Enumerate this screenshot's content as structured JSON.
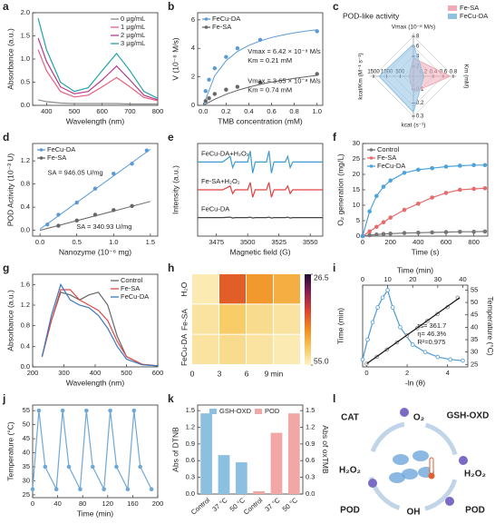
{
  "chart_data": [
    {
      "type": "line",
      "panel": "a",
      "xlabel": "Wavelength (nm)",
      "ylabel": "Absorbance (a.u.)",
      "xlim": [
        350,
        800
      ],
      "xticks": [
        400,
        500,
        600,
        700,
        800
      ],
      "ylim": [
        0,
        2.0
      ],
      "yticks": [
        {
          "value": 0,
          "label": "0.0"
        },
        0.5,
        {
          "value": 1,
          "label": "1.0"
        },
        1.5,
        {
          "value": 2,
          "label": "2.0"
        }
      ],
      "legend": "upper right",
      "x": [
        370,
        400,
        450,
        500,
        550,
        600,
        652,
        700,
        750,
        800
      ],
      "series": [
        {
          "name": "0 μg/mL",
          "color": "#8c8c8c",
          "values": [
            0.12,
            0.08,
            0.05,
            0.04,
            0.04,
            0.04,
            0.04,
            0.03,
            0.03,
            0.03
          ]
        },
        {
          "name": "1 μg/mL",
          "color": "#e8607e",
          "values": [
            1.2,
            0.75,
            0.3,
            0.18,
            0.22,
            0.4,
            0.6,
            0.4,
            0.17,
            0.1
          ]
        },
        {
          "name": "2 μg/mL",
          "color": "#b43a8c",
          "values": [
            1.45,
            0.95,
            0.4,
            0.25,
            0.3,
            0.55,
            0.85,
            0.55,
            0.22,
            0.12
          ]
        },
        {
          "name": "3 μg/mL",
          "color": "#22a3a8",
          "values": [
            1.88,
            1.2,
            0.5,
            0.3,
            0.38,
            0.75,
            1.12,
            0.75,
            0.3,
            0.15
          ]
        }
      ]
    },
    {
      "type": "scatter",
      "panel": "b",
      "xlabel": "TMB concentration (mM)",
      "ylabel": "V (10⁻⁸ M/s)",
      "xlim": [
        -0.05,
        1.05
      ],
      "xticks": [
        {
          "value": 0,
          "label": "0.0"
        },
        0.2,
        0.4,
        0.6,
        0.8,
        {
          "value": 1,
          "label": "1.0"
        }
      ],
      "ylim": [
        0,
        6.5
      ],
      "yticks": [
        0,
        2,
        4,
        6
      ],
      "legend": "upper left",
      "fit_x": [
        0,
        0.1,
        0.2,
        0.3,
        0.4,
        0.5,
        0.6,
        0.7,
        0.8,
        0.9,
        1.0
      ],
      "series": [
        {
          "name": "FeCu-DA",
          "color": "#5b9bd5",
          "x": [
            0.02,
            0.05,
            0.1,
            0.2,
            0.3,
            0.5,
            1.0
          ],
          "values": [
            1.0,
            1.8,
            2.6,
            3.4,
            4.0,
            4.6,
            5.2
          ],
          "fit_values": [
            0,
            2.07,
            3.13,
            3.78,
            4.21,
            4.52,
            4.76,
            4.94,
            5.09,
            5.21,
            5.31
          ]
        },
        {
          "name": "Fe-SA",
          "color": "#666666",
          "x": [
            0.02,
            0.05,
            0.1,
            0.2,
            0.3,
            0.5,
            1.0
          ],
          "values": [
            0.3,
            0.5,
            0.8,
            1.1,
            1.3,
            1.6,
            2.2
          ],
          "fit_values": [
            0,
            0.43,
            0.78,
            1.05,
            1.28,
            1.47,
            1.63,
            1.77,
            1.9,
            2.0,
            2.1
          ]
        }
      ],
      "annotations": [
        {
          "text": "Vmax = 6.42 × 10⁻⁸ M/s",
          "color": "#3a85c8"
        },
        {
          "text": "Km = 0.21 mM",
          "color": "#3a85c8"
        },
        {
          "text": "Vmax = 3.65 × 10⁻⁸ M/s",
          "color": "#444444"
        },
        {
          "text": "Km = 0.74 mM",
          "color": "#444444"
        }
      ]
    },
    {
      "type": "radar",
      "panel": "c",
      "title": "POD-like activity",
      "legend": "upper right",
      "axes": [
        {
          "name": "Vmax (10⁻⁸ M/s)",
          "lim": [
            0,
            8
          ],
          "ticks": [
            2,
            4,
            6,
            8
          ]
        },
        {
          "name": "Km (mM)",
          "lim": [
            0,
            0.8
          ],
          "ticks": [
            0.2,
            0.4,
            0.6,
            0.8
          ]
        },
        {
          "name": "kcat (s⁻¹)",
          "lim": [
            0,
            0.3
          ],
          "ticks": [
            0.1,
            0.2,
            0.3
          ]
        },
        {
          "name": "kcat/Km (M⁻¹ s⁻¹)",
          "lim": [
            0,
            1500
          ],
          "ticks": [
            500,
            1000,
            1500
          ]
        }
      ],
      "series": [
        {
          "name": "Fe-SA",
          "color": "#f2a9b8",
          "values": [
            3.65,
            0.74,
            0.12,
            160
          ]
        },
        {
          "name": "FeCu-DA",
          "color": "#8fc1e3",
          "values": [
            6.42,
            0.21,
            0.27,
            1290
          ]
        }
      ]
    },
    {
      "type": "scatter",
      "panel": "d",
      "xlabel": "Nanozyme (10⁻⁶ mg)",
      "ylabel": "POD Activity (10⁻³ U)",
      "xlim": [
        -0.1,
        1.6
      ],
      "xticks": [
        {
          "value": 0,
          "label": "0.0"
        },
        0.5,
        {
          "value": 1,
          "label": "1.0"
        },
        1.5
      ],
      "ylim": [
        -0.1,
        1.5
      ],
      "yticks": [
        {
          "value": 0,
          "label": "0.0"
        },
        0.4,
        0.8,
        1.2
      ],
      "legend": "upper left",
      "fit_x": [
        0,
        1.5
      ],
      "series": [
        {
          "name": "FeCu-DA",
          "color": "#5b9bd5",
          "x": [
            0.1,
            0.25,
            0.5,
            0.75,
            1.0,
            1.25,
            1.45
          ],
          "values": [
            0.1,
            0.27,
            0.48,
            0.72,
            0.98,
            1.15,
            1.38
          ],
          "fit_values": [
            0.02,
            1.4
          ]
        },
        {
          "name": "Fe-SA",
          "color": "#666666",
          "x": [
            0.25,
            0.5,
            0.75,
            1.0,
            1.25
          ],
          "values": [
            0.08,
            0.17,
            0.27,
            0.35,
            0.42
          ],
          "fit_values": [
            0,
            0.5
          ]
        }
      ],
      "annotations": [
        {
          "text": "SA = 946.05 U/mg",
          "color": "#3a85c8"
        },
        {
          "text": "SA = 340.93 U/mg",
          "color": "#444444"
        }
      ]
    },
    {
      "type": "line",
      "panel": "e",
      "xlabel": "Magnetic field (G)",
      "ylabel": "Intensity (a.u.)",
      "xlim": [
        3460,
        3560
      ],
      "xticks": [
        3475,
        3500,
        3525,
        3550
      ],
      "ylim": [
        0,
        10
      ],
      "legend": "inline",
      "x": [
        3460,
        3480,
        3486,
        3488,
        3490,
        3500,
        3502,
        3504,
        3506,
        3515,
        3517,
        3519,
        3521,
        3530,
        3532,
        3534,
        3536,
        3560
      ],
      "series": [
        {
          "name": "FeCu-DA+H₂O₂",
          "color": "#3d9bd0",
          "values": [
            8,
            8,
            8.6,
            7.4,
            8,
            8,
            9.2,
            6.8,
            8,
            8,
            9.2,
            6.8,
            8,
            8,
            8.6,
            7.4,
            8,
            8
          ]
        },
        {
          "name": "Fe-SA+H₂O₂",
          "color": "#e04040",
          "values": [
            5,
            5,
            5.4,
            4.6,
            5,
            5,
            5.8,
            4.2,
            5,
            5,
            5.8,
            4.2,
            5,
            5,
            5.4,
            4.6,
            5,
            5
          ]
        },
        {
          "name": "FeCu-DA",
          "color": "#444444",
          "values": [
            2,
            2,
            2.05,
            1.95,
            2,
            2,
            2.05,
            1.95,
            2,
            2,
            2.05,
            1.95,
            2,
            2,
            2.05,
            1.95,
            2,
            2
          ]
        }
      ]
    },
    {
      "type": "line",
      "panel": "f",
      "xlabel": "Time (s)",
      "ylabel": "O₂ generation (mg/L)",
      "xlim": [
        0,
        900
      ],
      "xticks": [
        0,
        200,
        400,
        600,
        800
      ],
      "ylim": [
        0,
        30
      ],
      "yticks": [
        0,
        5,
        10,
        15,
        20,
        25,
        30
      ],
      "legend": "upper left",
      "x": [
        0,
        50,
        100,
        150,
        200,
        300,
        400,
        500,
        600,
        700,
        800,
        880
      ],
      "series": [
        {
          "name": "Control",
          "color": "#777777",
          "style": "line+markers",
          "values": [
            0,
            0.3,
            0.5,
            0.7,
            0.8,
            1,
            1.1,
            1.2,
            1.3,
            1.4,
            1.4,
            1.5
          ]
        },
        {
          "name": "Fe-SA",
          "color": "#e86a6a",
          "style": "line+markers",
          "values": [
            0,
            1.5,
            3,
            4.5,
            6,
            8.5,
            10.5,
            12.5,
            14,
            15,
            15.3,
            15.5
          ]
        },
        {
          "name": "FeCu-DA",
          "color": "#4da3dc",
          "style": "line+markers",
          "values": [
            0,
            8,
            13,
            16,
            18,
            20.5,
            21.5,
            22,
            22.5,
            22.8,
            23,
            23
          ]
        }
      ]
    },
    {
      "type": "line",
      "panel": "g",
      "xlabel": "Wavelength (nm)",
      "ylabel": "Absorbance (a.u.)",
      "xlim": [
        200,
        600
      ],
      "xticks": [
        200,
        300,
        400,
        500,
        600
      ],
      "ylim": [
        0,
        1.8
      ],
      "yticks": [
        {
          "value": 0,
          "label": "0.0"
        },
        0.4,
        0.8,
        1.2,
        1.6
      ],
      "legend": "upper right",
      "x": [
        230,
        260,
        290,
        320,
        350,
        380,
        410,
        440,
        470,
        500,
        550,
        600
      ],
      "series": [
        {
          "name": "Control",
          "color": "#666666",
          "values": [
            0.2,
            0.9,
            1.45,
            1.4,
            1.3,
            1.4,
            1.45,
            1.2,
            0.6,
            0.2,
            0.05,
            0.02
          ]
        },
        {
          "name": "Fe-SA",
          "color": "#e04848",
          "values": [
            0.2,
            0.9,
            1.5,
            1.5,
            1.3,
            1.2,
            1.1,
            0.9,
            0.5,
            0.2,
            0.05,
            0.02
          ]
        },
        {
          "name": "FeCu-DA",
          "color": "#3a78c0",
          "values": [
            0.2,
            1.0,
            1.6,
            1.3,
            1.2,
            1.15,
            1.0,
            0.75,
            0.4,
            0.15,
            0.04,
            0.02
          ]
        }
      ]
    },
    {
      "type": "heatmap",
      "panel": "h",
      "rows": [
        "H₂O",
        "Fe-SA",
        "FeCu-DA"
      ],
      "columns": [
        "0",
        "3",
        "6",
        "9 min"
      ],
      "values": [
        [
          54,
          40,
          45,
          47
        ],
        [
          53,
          50,
          52,
          53
        ],
        [
          53,
          52,
          53,
          54
        ]
      ],
      "zlim": [
        26.5,
        55
      ],
      "zticks": [
        26.5,
        {
          "value": 55,
          "label": "55.0"
        }
      ],
      "colormap": [
        "#200c33",
        "#8a1e52",
        "#d8442f",
        "#f08a1e",
        "#f7c65a",
        "#fcf3c6"
      ]
    },
    {
      "type": "line",
      "panel": "i",
      "xlabel": "-ln (θ)",
      "ylabel": "Time (min)",
      "x2label": "Time (min)",
      "y2label": "Temperature (°C)",
      "xlim": [
        -0.2,
        5
      ],
      "xticks": [
        0,
        2,
        4
      ],
      "x2lim": [
        0,
        42
      ],
      "x2ticks": [
        0,
        10,
        20,
        30,
        40
      ],
      "ylim": [
        -1,
        25
      ],
      "y2lim": [
        24,
        57
      ],
      "y2ticks": [
        25,
        30,
        35,
        40,
        45,
        50,
        55
      ],
      "series": [
        {
          "axis": "y2",
          "color": "#4d9ad6",
          "style": "line+markers",
          "x": [
            0,
            2,
            4,
            6,
            8,
            10,
            12,
            15,
            20,
            25,
            30,
            35,
            40
          ],
          "values": [
            27,
            35,
            42,
            48,
            52,
            55,
            48,
            40,
            33,
            30,
            28,
            27,
            26.5
          ]
        },
        {
          "color": "#888888",
          "style": "markers",
          "x": [
            0,
            0.5,
            1,
            1.5,
            2,
            2.5,
            3,
            3.5,
            4,
            4.5
          ],
          "values": [
            0,
            2.2,
            4.5,
            6.8,
            9,
            11.3,
            13.6,
            15.8,
            18,
            21
          ]
        },
        {
          "color": "#111111",
          "style": "line",
          "x": [
            0,
            4.6
          ],
          "values": [
            0,
            21
          ]
        }
      ],
      "annotations": [
        {
          "text": "τs= 361.7",
          "color": "#222222"
        },
        {
          "text": "η= 46.3%",
          "color": "#222222"
        },
        {
          "text": "R²=0.975",
          "color": "#222222"
        }
      ]
    },
    {
      "type": "line",
      "panel": "j",
      "xlabel": "Time (min)",
      "ylabel": "Temperature (°C)",
      "xlim": [
        0,
        200
      ],
      "xticks": [
        0,
        40,
        80,
        120,
        160,
        200
      ],
      "ylim": [
        24,
        57
      ],
      "yticks": [
        25,
        30,
        35,
        40,
        45,
        50,
        55
      ],
      "series": [
        {
          "color": "#6fa8d6",
          "style": "line+markers",
          "x": [
            0,
            10,
            20,
            38,
            48,
            58,
            76,
            86,
            96,
            114,
            124,
            134,
            152,
            162,
            172,
            190
          ],
          "values": [
            27,
            55,
            35,
            27,
            55,
            35,
            27,
            55,
            35,
            27,
            55,
            35,
            27,
            55,
            35,
            27
          ]
        }
      ]
    },
    {
      "type": "bar",
      "panel": "k",
      "ylabel": "Abs of DTNB",
      "y2label": "Abs of oxTMB",
      "categories": [
        "Control",
        "37 °C",
        "50 °C",
        "Control",
        "37 °C",
        "50 °C"
      ],
      "ylim": [
        0,
        1.6
      ],
      "yticks": [
        {
          "value": 0,
          "label": "0.0"
        },
        0.3,
        0.6,
        0.9,
        1.2,
        1.5
      ],
      "y2lim": [
        0,
        1.6
      ],
      "y2ticks": [
        {
          "value": 0,
          "label": "0.0"
        },
        0.3,
        0.6,
        0.9,
        1.2,
        1.5
      ],
      "legend": "upper center",
      "series": [
        {
          "name": "GSH-OXD",
          "color": "#8dbfe0",
          "values": [
            1.45,
            0.7,
            0.57,
            null,
            null,
            null
          ]
        },
        {
          "name": "POD",
          "color": "#f2a7a7",
          "axis": "y2",
          "values": [
            null,
            null,
            null,
            0.05,
            1.1,
            1.45
          ]
        }
      ]
    },
    {
      "type": "diagram",
      "panel": "l",
      "labels": [
        "CAT",
        "O₂",
        "GSH-OXD",
        "H₂O₂",
        "H₂O₂",
        "POD",
        "OH",
        "POD"
      ]
    }
  ]
}
